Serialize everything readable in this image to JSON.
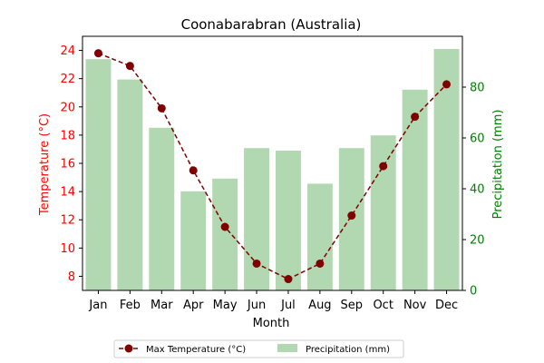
{
  "chart_data": {
    "type": "bar+line",
    "title": "Coonabarabran (Australia)",
    "xlabel": "Month",
    "categories": [
      "Jan",
      "Feb",
      "Mar",
      "Apr",
      "May",
      "Jun",
      "Jul",
      "Aug",
      "Sep",
      "Oct",
      "Nov",
      "Dec"
    ],
    "y_left": {
      "label": "Temperature (°C)",
      "range": [
        7,
        25
      ],
      "ticks": [
        8,
        10,
        12,
        14,
        16,
        18,
        20,
        22,
        24
      ],
      "color": "#ff0000"
    },
    "y_right": {
      "label": "Precipitation (mm)",
      "range": [
        0,
        100
      ],
      "ticks": [
        0,
        20,
        40,
        60,
        80
      ],
      "color": "#008000"
    },
    "series": [
      {
        "name": "Max Temperature (°C)",
        "type": "line",
        "axis": "left",
        "color": "#800000",
        "style": "dashed",
        "marker": "circle",
        "values": [
          23.8,
          22.9,
          19.9,
          15.5,
          11.5,
          8.9,
          7.8,
          8.9,
          12.3,
          15.8,
          19.3,
          21.6
        ]
      },
      {
        "name": "Precipitation (mm)",
        "type": "bar",
        "axis": "right",
        "color": "#b2d8b2",
        "values": [
          91,
          83,
          64,
          39,
          44,
          56,
          55,
          42,
          56,
          61,
          79,
          95
        ]
      }
    ],
    "legend": {
      "placement": "bottom-center",
      "columns": 2
    },
    "grid": false
  }
}
